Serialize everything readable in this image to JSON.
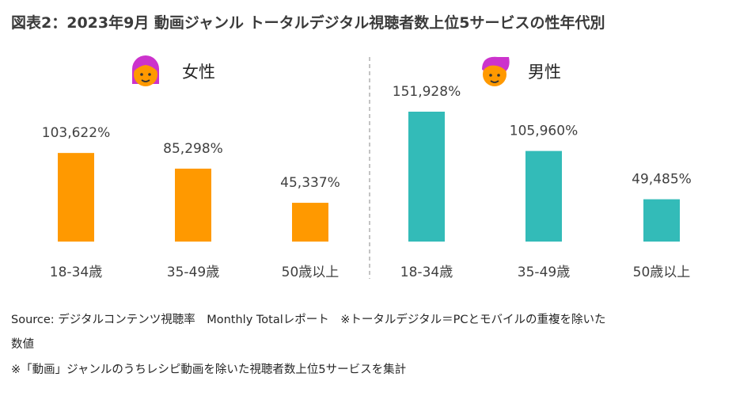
{
  "title": "図表2：2023年9月 動画ジャンル トータルデジタル視聴者数上位5サービスの性年代別",
  "chart_data": [
    {
      "type": "bar",
      "panel": "女性",
      "categories": [
        "18-34歳",
        "35-49歳",
        "50歳以上"
      ],
      "values": [
        103.622,
        85.298,
        45.337
      ],
      "data_labels": [
        "103,622%",
        "85,298%",
        "45,337%"
      ],
      "color": "#FF9900",
      "icon_hair_color": "#CC33CC"
    },
    {
      "type": "bar",
      "panel": "男性",
      "categories": [
        "18-34歳",
        "35-49歳",
        "50歳以上"
      ],
      "values": [
        151.928,
        105.96,
        49.485
      ],
      "data_labels": [
        "151,928%",
        "105,960%",
        "49,485%"
      ],
      "color": "#33BBB8",
      "icon_hair_color": "#CC33CC"
    }
  ],
  "footer": {
    "line1": "Source: デジタルコンテンツ視聴率　Monthly Totalレポート　※トータルデジタル＝PCとモバイルの重複を除いた",
    "line2": "数値",
    "line3": "※「動画」ジャンルのうちレシピ動画を除いた視聴者数上位5サービスを集計"
  }
}
